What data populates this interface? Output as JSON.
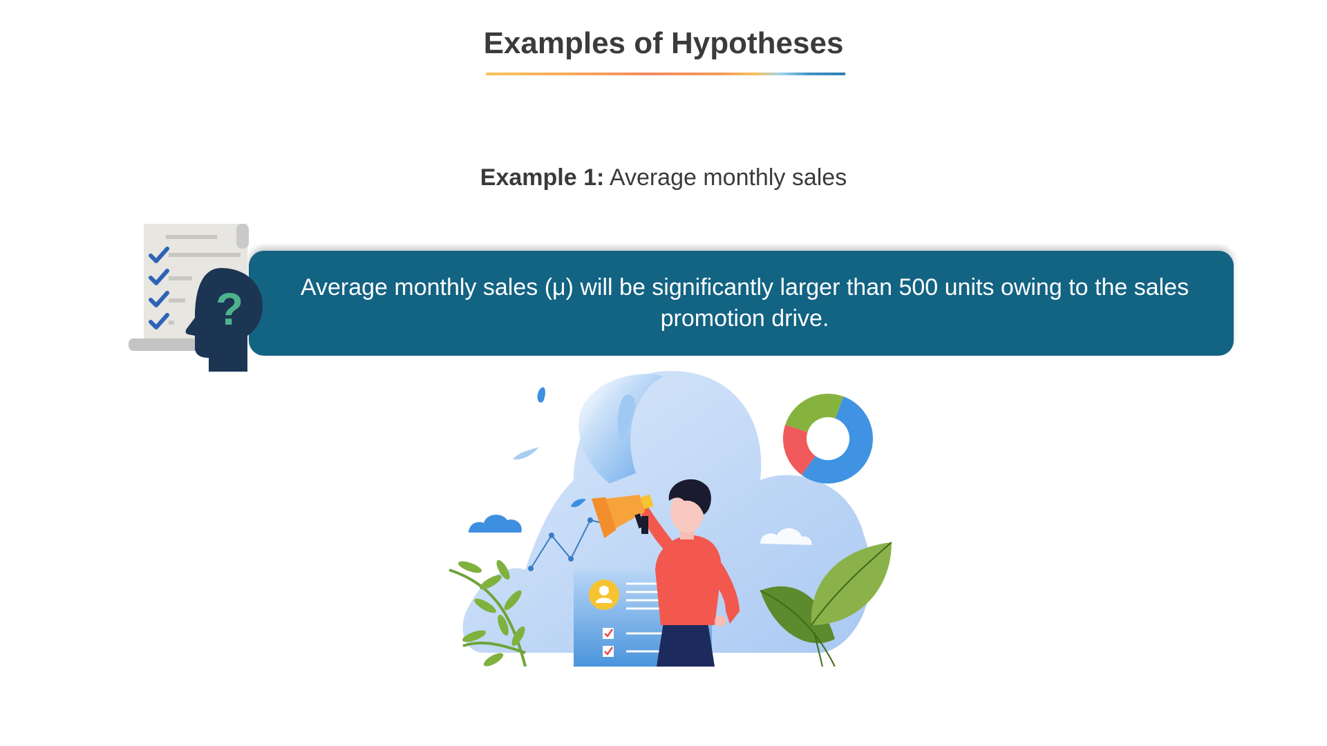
{
  "slide": {
    "title": "Examples of Hypotheses",
    "example": {
      "label": "Example 1:",
      "text": "Average monthly sales"
    },
    "hypothesis": "Average monthly sales (μ) will be significantly larger than 500 units owing to the sales promotion drive."
  },
  "icons": {
    "hypothesis_icon": "checklist-head-question-icon",
    "illustration": "megaphone-marketing-illustration"
  },
  "colors": {
    "banner": "#136383",
    "question_mark": "#4db38c",
    "head": "#1c3553",
    "check": "#2e63b8"
  }
}
